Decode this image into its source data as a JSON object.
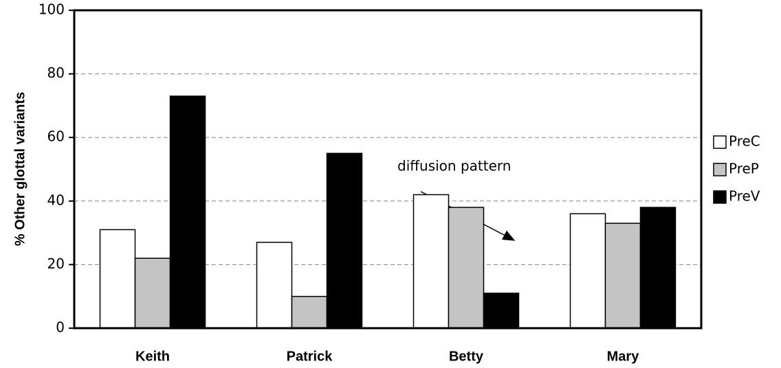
{
  "chart_data": {
    "type": "bar",
    "y_label": "% Other glottal variants",
    "categories": [
      "Keith",
      "Patrick",
      "Betty",
      "Mary"
    ],
    "series": [
      {
        "name": "PreC",
        "color": "#ffffff",
        "values": [
          31,
          27,
          42,
          36
        ]
      },
      {
        "name": "PreP",
        "color": "#c4c4c4",
        "values": [
          22,
          10,
          38,
          33
        ]
      },
      {
        "name": "PreV",
        "color": "#000000",
        "values": [
          73,
          55,
          11,
          38
        ]
      }
    ],
    "ylim": [
      0,
      100
    ],
    "yticks": [
      0,
      20,
      40,
      60,
      80,
      100
    ],
    "grid": true,
    "legend": "right",
    "annotations": [
      {
        "text": "diffusion pattern"
      }
    ]
  }
}
